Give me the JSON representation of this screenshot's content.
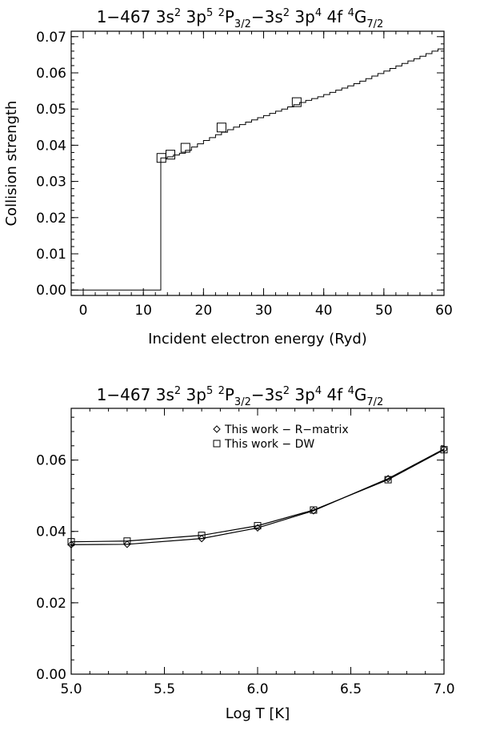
{
  "chart_data": [
    {
      "type": "line",
      "title": {
        "prefix": "1−467  3s",
        "sup1": "2",
        "mid1": "  3p",
        "sup2": "5",
        "sp1": " ",
        "sup3": "2",
        "mid2": "P",
        "sub1": "3/2",
        "mid3": "−3s",
        "sup4": "2",
        "mid4": "  3p",
        "sup5": "4",
        "mid5": "  4f  ",
        "sup6": "4",
        "mid6": "G",
        "sub2": "7/2"
      },
      "xlabel": "Incident electron energy (Ryd)",
      "ylabel": "Collision strength",
      "xlim": [
        -2,
        60
      ],
      "ylim": [
        -0.0015,
        0.0715
      ],
      "xticks": [
        0,
        10,
        20,
        30,
        40,
        50,
        60
      ],
      "xtick_labels": [
        "0",
        "10",
        "20",
        "30",
        "40",
        "50",
        "60"
      ],
      "yticks": [
        0.0,
        0.01,
        0.02,
        0.03,
        0.04,
        0.05,
        0.06,
        0.07
      ],
      "ytick_labels": [
        "0.00",
        "0.01",
        "0.02",
        "0.03",
        "0.04",
        "0.05",
        "0.06",
        "0.07"
      ],
      "threshold": 12.9,
      "series": [
        {
          "name": "R-matrix",
          "style": "step",
          "x": [
            -2,
            12.9,
            12.9,
            14,
            15,
            16,
            17,
            18,
            19,
            20,
            21,
            22,
            23,
            24,
            25,
            26,
            27,
            28,
            29,
            30,
            31,
            32,
            33,
            34,
            35,
            36,
            37,
            38,
            39,
            40,
            41,
            42,
            43,
            44,
            45,
            46,
            47,
            48,
            49,
            50,
            51,
            52,
            53,
            54,
            55,
            56,
            57,
            58,
            59,
            60
          ],
          "y": [
            0.0,
            0.0,
            0.0365,
            0.0368,
            0.0373,
            0.0378,
            0.0386,
            0.0395,
            0.0404,
            0.0413,
            0.0421,
            0.0429,
            0.0436,
            0.0443,
            0.045,
            0.0457,
            0.0464,
            0.047,
            0.0476,
            0.0482,
            0.0488,
            0.0494,
            0.05,
            0.0506,
            0.0512,
            0.0518,
            0.0524,
            0.0529,
            0.0534,
            0.054,
            0.0546,
            0.0552,
            0.0558,
            0.0564,
            0.057,
            0.0577,
            0.0584,
            0.0591,
            0.0598,
            0.0605,
            0.0612,
            0.0619,
            0.0626,
            0.0633,
            0.0639,
            0.0646,
            0.0653,
            0.066,
            0.0666,
            0.0672
          ]
        },
        {
          "name": "DW",
          "style": "markers",
          "marker": "square",
          "x": [
            13.0,
            14.5,
            17.0,
            23.0,
            35.5
          ],
          "y": [
            0.0365,
            0.0374,
            0.0393,
            0.0449,
            0.0519
          ]
        }
      ]
    },
    {
      "type": "line",
      "title": {
        "prefix": "1−467  3s",
        "sup1": "2",
        "mid1": "  3p",
        "sup2": "5",
        "sp1": " ",
        "sup3": "2",
        "mid2": "P",
        "sub1": "3/2",
        "mid3": "−3s",
        "sup4": "2",
        "mid4": "  3p",
        "sup5": "4",
        "mid5": "  4f  ",
        "sup6": "4",
        "mid6": "G",
        "sub2": "7/2"
      },
      "xlabel": "Log T [K]",
      "ylabel": "",
      "xlim": [
        5.0,
        7.0
      ],
      "ylim": [
        0.0,
        0.0745
      ],
      "xticks": [
        5.0,
        5.5,
        6.0,
        6.5,
        7.0
      ],
      "xtick_labels": [
        "5.0",
        "5.5",
        "6.0",
        "6.5",
        "7.0"
      ],
      "yticks": [
        0.0,
        0.02,
        0.04,
        0.06
      ],
      "ytick_labels": [
        "0.00",
        "0.02",
        "0.04",
        "0.06"
      ],
      "legend": {
        "position": "top-right",
        "entries": [
          {
            "label": "This work − R−matrix",
            "marker": "diamond"
          },
          {
            "label": "This work − DW",
            "marker": "square"
          }
        ]
      },
      "series": [
        {
          "name": "This work − R−matrix",
          "marker": "diamond",
          "x": [
            5.0,
            5.3,
            5.7,
            6.0,
            6.3,
            6.7,
            7.0
          ],
          "y": [
            0.0363,
            0.0364,
            0.038,
            0.041,
            0.0458,
            0.0548,
            0.0631
          ]
        },
        {
          "name": "This work − DW",
          "marker": "square",
          "x": [
            5.0,
            5.3,
            5.7,
            6.0,
            6.3,
            6.7,
            7.0
          ],
          "y": [
            0.0371,
            0.0373,
            0.0389,
            0.0416,
            0.046,
            0.0545,
            0.0629
          ]
        }
      ]
    }
  ]
}
